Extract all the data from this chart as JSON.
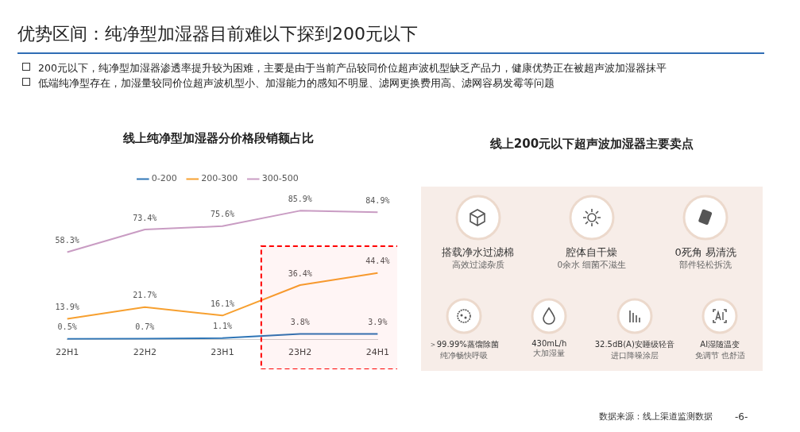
{
  "chart_data": [
    {
      "type": "other",
      "title": "优势区间：纯净型加湿器目前难以下探到200元以下",
      "annotations": [
        "200元以下，纯净型加湿器渗透率提升较为困难，主要是由于当前产品较同价位超声波机型缺乏产品力，健康优势正在被超声波加湿器抹平",
        "低端纯净型存在，加湿量较同价位超声波机型小、加湿能力的感知不明显、滤网更换费用高、滤网容易发霉等问题",
        "数据来源：线上渠道监测数据",
        "-6-"
      ]
    },
    {
      "type": "line",
      "title": "线上纯净型加湿器分价格段销额占比",
      "categories": [
        "22H1",
        "22H2",
        "23H1",
        "23H2",
        "24H1"
      ],
      "series": [
        {
          "name": "0-200",
          "color": "#2e75b6",
          "values": [
            0.5,
            0.7,
            1.1,
            3.8,
            3.9
          ],
          "value_labels": [
            "0.5%",
            "0.7%",
            "1.1%",
            "3.8%",
            "3.9%"
          ]
        },
        {
          "name": "200-300",
          "color": "#f7a030",
          "values": [
            13.9,
            21.7,
            16.1,
            36.4,
            44.4
          ],
          "value_labels": [
            "13.9%",
            "21.7%",
            "16.1%",
            "36.4%",
            "44.4%"
          ]
        },
        {
          "name": "300-500",
          "color": "#c99cc3",
          "values": [
            58.3,
            73.4,
            75.6,
            85.9,
            84.9
          ],
          "value_labels": [
            "58.3%",
            "73.4%",
            "75.6%",
            "85.9%",
            "84.9%"
          ]
        }
      ],
      "bands": [
        {
          "axis": "x",
          "from": "23H2",
          "to": "24H1",
          "color": "#ff0000"
        }
      ],
      "legend": "top",
      "grid": false,
      "marker": "none",
      "line_style": "solid"
    },
    {
      "type": "other",
      "title": "线上200元以下超声波加湿器主要卖点",
      "annotations": [
        "搭载净水过滤棉",
        "高效过滤杂质",
        "腔体自干燥",
        "0余水 细菌不滋生",
        "0死角 易清洗",
        "部件轻松拆洗",
        "＞99.99%蒸馏除菌",
        "纯净畅快呼吸",
        "430mL/h",
        "大加湿量",
        "32.5dB(A)安睡级轻音",
        "进口降噪涂层",
        "AI湿随温变",
        "免调节 也舒适"
      ]
    }
  ]
}
